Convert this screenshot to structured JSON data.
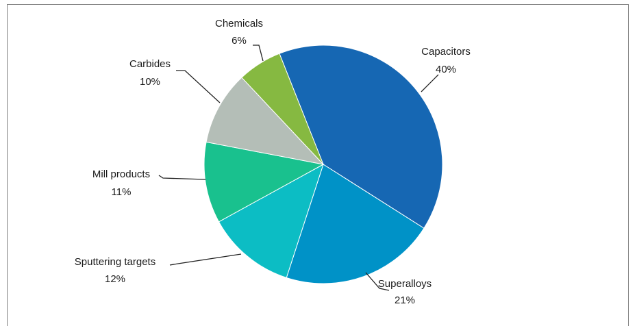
{
  "chart_data": {
    "type": "pie",
    "title": "",
    "legend": "none",
    "slices": [
      {
        "label": "Capacitors",
        "value": 40,
        "value_label": "40%",
        "color": "#1667b3"
      },
      {
        "label": "Superalloys",
        "value": 21,
        "value_label": "21%",
        "color": "#0092c7"
      },
      {
        "label": "Sputtering targets",
        "value": 12,
        "value_label": "12%",
        "color": "#0cbdc4"
      },
      {
        "label": "Mill products",
        "value": 11,
        "value_label": "11%",
        "color": "#19c18e"
      },
      {
        "label": "Carbides",
        "value": 10,
        "value_label": "10%",
        "color": "#b4beb7"
      },
      {
        "label": "Chemicals",
        "value": 6,
        "value_label": "6%",
        "color": "#86b941"
      }
    ]
  }
}
